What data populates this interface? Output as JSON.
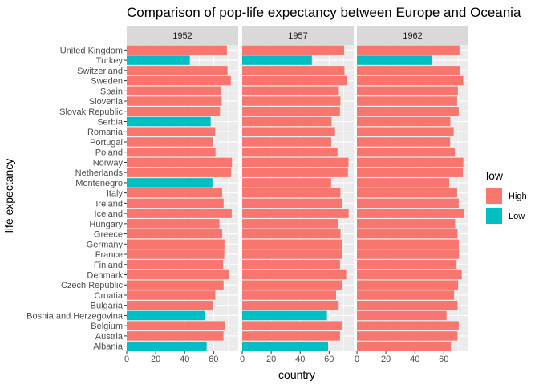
{
  "chart_data": {
    "type": "bar",
    "orientation": "horizontal",
    "title": "Comparison of pop-life expectancy between Europe and Oceania",
    "xlabel": "country",
    "ylabel": "life expectancy",
    "xlim": [
      0,
      77
    ],
    "xticks": [
      0,
      20,
      40,
      60
    ],
    "facets": [
      "1952",
      "1957",
      "1962"
    ],
    "categories": [
      "United Kingdom",
      "Turkey",
      "Switzerland",
      "Sweden",
      "Spain",
      "Slovenia",
      "Slovak Republic",
      "Serbia",
      "Romania",
      "Portugal",
      "Poland",
      "Norway",
      "Netherlands",
      "Montenegro",
      "Italy",
      "Ireland",
      "Iceland",
      "Hungary",
      "Greece",
      "Germany",
      "France",
      "Finland",
      "Denmark",
      "Czech Republic",
      "Croatia",
      "Bulgaria",
      "Bosnia and Herzegovina",
      "Belgium",
      "Austria",
      "Albania"
    ],
    "values": {
      "1952": [
        69.2,
        43.6,
        69.6,
        71.9,
        64.9,
        65.6,
        64.4,
        58.0,
        61.1,
        59.8,
        61.3,
        72.7,
        72.1,
        59.2,
        65.9,
        66.9,
        72.5,
        64.0,
        65.9,
        67.5,
        67.4,
        66.6,
        70.8,
        66.9,
        61.2,
        59.6,
        53.8,
        68.0,
        66.8,
        55.2
      ],
      "1957": [
        70.4,
        48.1,
        70.6,
        72.5,
        66.7,
        67.8,
        67.5,
        61.7,
        64.1,
        61.5,
        65.8,
        73.4,
        73.0,
        61.4,
        67.8,
        68.9,
        73.5,
        66.4,
        67.9,
        69.1,
        68.9,
        67.5,
        71.8,
        69.0,
        64.8,
        66.6,
        58.5,
        69.2,
        67.5,
        59.3
      ],
      "1962": [
        70.8,
        52.1,
        71.3,
        73.4,
        69.7,
        69.2,
        70.3,
        64.5,
        66.8,
        64.4,
        67.6,
        73.5,
        73.2,
        63.7,
        69.2,
        70.3,
        73.7,
        67.8,
        69.5,
        70.3,
        70.5,
        68.8,
        72.4,
        69.9,
        67.1,
        69.5,
        61.9,
        70.3,
        69.5,
        64.8
      ]
    },
    "fill_by": "low",
    "low_flags": {
      "1952": [
        "High",
        "Low",
        "High",
        "High",
        "High",
        "High",
        "High",
        "Low",
        "High",
        "High",
        "High",
        "High",
        "High",
        "Low",
        "High",
        "High",
        "High",
        "High",
        "High",
        "High",
        "High",
        "High",
        "High",
        "High",
        "High",
        "High",
        "Low",
        "High",
        "High",
        "Low"
      ],
      "1957": [
        "High",
        "Low",
        "High",
        "High",
        "High",
        "High",
        "High",
        "High",
        "High",
        "High",
        "High",
        "High",
        "High",
        "High",
        "High",
        "High",
        "High",
        "High",
        "High",
        "High",
        "High",
        "High",
        "High",
        "High",
        "High",
        "High",
        "Low",
        "High",
        "High",
        "Low"
      ],
      "1962": [
        "High",
        "Low",
        "High",
        "High",
        "High",
        "High",
        "High",
        "High",
        "High",
        "High",
        "High",
        "High",
        "High",
        "High",
        "High",
        "High",
        "High",
        "High",
        "High",
        "High",
        "High",
        "High",
        "High",
        "High",
        "High",
        "High",
        "High",
        "High",
        "High",
        "High"
      ]
    },
    "legend": {
      "title": "low",
      "placement": "right",
      "entries": [
        {
          "name": "High",
          "color": "#F8766D"
        },
        {
          "name": "Low",
          "color": "#00BFC4"
        }
      ]
    },
    "grid": true,
    "colors": {
      "panel_bg": "#EBEBEB",
      "strip_bg": "#D9D9D9",
      "grid": "#FFFFFF"
    }
  }
}
